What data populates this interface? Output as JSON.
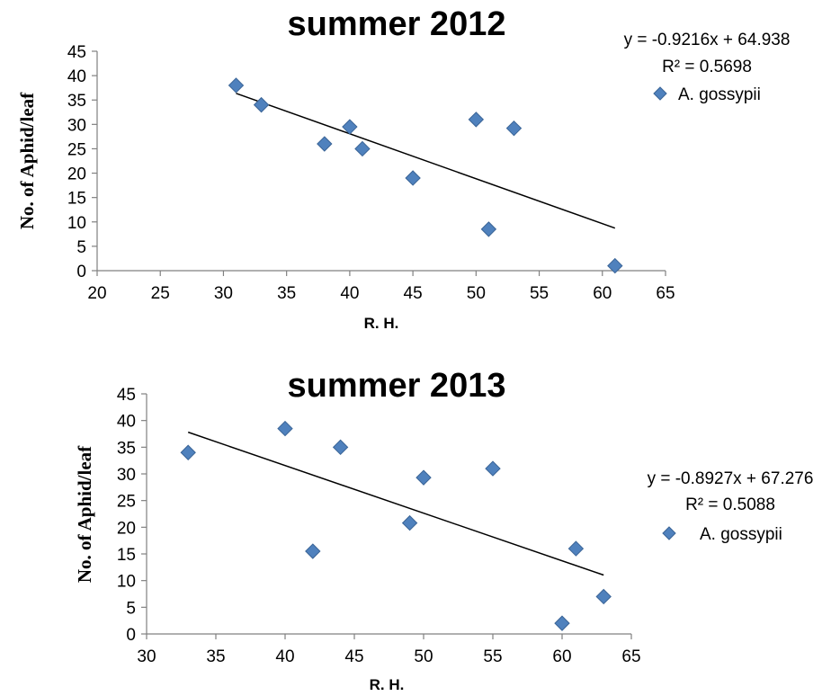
{
  "colors": {
    "marker": "#4f81bd",
    "marker_edge": "#3a6496",
    "trend": "#000000",
    "axis": "#808080"
  },
  "chart_data": [
    {
      "type": "scatter",
      "title": "summer 2012",
      "xlabel": "R. H.",
      "ylabel": "No. of Aphid/leaf",
      "xlim": [
        20,
        65
      ],
      "ylim": [
        0,
        45
      ],
      "xticks": [
        20,
        25,
        30,
        35,
        40,
        45,
        50,
        55,
        60,
        65
      ],
      "yticks": [
        0,
        5,
        10,
        15,
        20,
        25,
        30,
        35,
        40,
        45
      ],
      "grid": false,
      "legend_position": "top-right",
      "series": [
        {
          "name": "A. gossypii",
          "marker": "diamond",
          "points": [
            {
              "x": 31,
              "y": 38
            },
            {
              "x": 33,
              "y": 34
            },
            {
              "x": 38,
              "y": 26
            },
            {
              "x": 40,
              "y": 29.5
            },
            {
              "x": 41,
              "y": 25
            },
            {
              "x": 45,
              "y": 19
            },
            {
              "x": 50,
              "y": 31
            },
            {
              "x": 51,
              "y": 8.5
            },
            {
              "x": 53,
              "y": 29.2
            },
            {
              "x": 61,
              "y": 1
            }
          ]
        }
      ],
      "trendline": {
        "slope": -0.9216,
        "intercept": 64.938,
        "x_range": [
          31,
          61
        ]
      },
      "equation": "y = -0.9216x + 64.938",
      "r_squared": "R² = 0.5698"
    },
    {
      "type": "scatter",
      "title": "summer 2013",
      "xlabel": "R. H.",
      "ylabel": "No. of Aphid/leaf",
      "xlim": [
        30,
        65
      ],
      "ylim": [
        0,
        45
      ],
      "xticks": [
        30,
        35,
        40,
        45,
        50,
        55,
        60,
        65
      ],
      "yticks": [
        0,
        5,
        10,
        15,
        20,
        25,
        30,
        35,
        40,
        45
      ],
      "grid": false,
      "legend_position": "right",
      "series": [
        {
          "name": "A. gossypii",
          "marker": "diamond",
          "points": [
            {
              "x": 33,
              "y": 34
            },
            {
              "x": 40,
              "y": 38.5
            },
            {
              "x": 42,
              "y": 15.5
            },
            {
              "x": 44,
              "y": 35
            },
            {
              "x": 49,
              "y": 20.8
            },
            {
              "x": 50,
              "y": 29.3
            },
            {
              "x": 55,
              "y": 31
            },
            {
              "x": 60,
              "y": 2
            },
            {
              "x": 61,
              "y": 16
            },
            {
              "x": 63,
              "y": 7
            }
          ]
        }
      ],
      "trendline": {
        "slope": -0.8927,
        "intercept": 67.276,
        "x_range": [
          33,
          63
        ]
      },
      "equation": "y = -0.8927x + 67.276",
      "r_squared": "R² = 0.5088"
    }
  ]
}
